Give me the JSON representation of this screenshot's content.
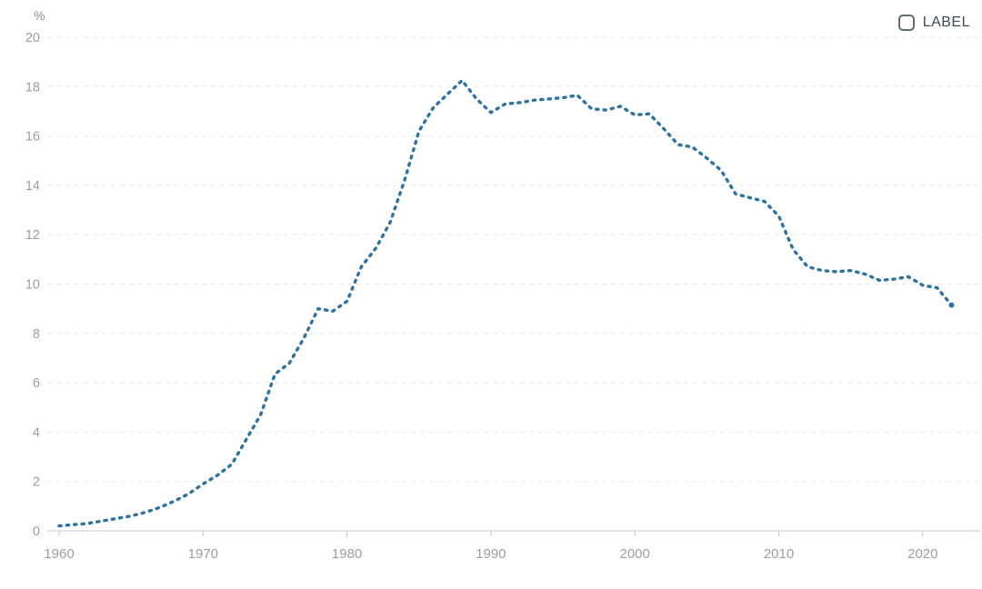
{
  "page": {
    "background_color": "#ffffff"
  },
  "legend": {
    "label": "LABEL",
    "checked": false
  },
  "axis_style": {
    "tick_label_color": "#9e9e9e",
    "unit_label_color": "#8a8f94",
    "grid_color": "#e8e8e8",
    "axis_line_color": "#dcdcdc",
    "tick_mark_color": "#c8c8c8"
  },
  "chart_data": {
    "type": "line",
    "title": "",
    "xlabel": "",
    "ylabel": "%",
    "line_color": "#2d72a0",
    "line_style": "dotted",
    "grid": "horizontal-dashed",
    "legend_position": "top-right",
    "xlim": [
      1959.4,
      2024
    ],
    "ylim": [
      0,
      20
    ],
    "x_ticks": [
      1960,
      1970,
      1980,
      1990,
      2000,
      2010,
      2020
    ],
    "y_ticks": [
      0,
      2,
      4,
      6,
      8,
      10,
      12,
      14,
      16,
      18,
      20
    ],
    "x": [
      1960,
      1961,
      1962,
      1963,
      1964,
      1965,
      1966,
      1967,
      1968,
      1969,
      1970,
      1971,
      1972,
      1973,
      1974,
      1975,
      1976,
      1977,
      1978,
      1979,
      1980,
      1981,
      1982,
      1983,
      1984,
      1985,
      1986,
      1987,
      1988,
      1989,
      1990,
      1991,
      1992,
      1993,
      1994,
      1995,
      1996,
      1997,
      1998,
      1999,
      2000,
      2001,
      2002,
      2003,
      2004,
      2005,
      2006,
      2007,
      2008,
      2009,
      2010,
      2011,
      2012,
      2013,
      2014,
      2015,
      2016,
      2017,
      2018,
      2019,
      2020,
      2021,
      2022
    ],
    "values": [
      0.2,
      0.25,
      0.3,
      0.4,
      0.5,
      0.6,
      0.75,
      0.95,
      1.2,
      1.5,
      1.9,
      2.25,
      2.7,
      3.7,
      4.7,
      6.35,
      6.8,
      7.8,
      9.0,
      8.9,
      9.3,
      10.7,
      11.45,
      12.5,
      14.2,
      16.2,
      17.15,
      17.7,
      18.25,
      17.5,
      16.95,
      17.3,
      17.35,
      17.45,
      17.5,
      17.55,
      17.65,
      17.1,
      17.05,
      17.2,
      16.85,
      16.9,
      16.3,
      15.65,
      15.55,
      15.1,
      14.6,
      13.65,
      13.5,
      13.35,
      12.75,
      11.4,
      10.7,
      10.55,
      10.5,
      10.55,
      10.4,
      10.15,
      10.2,
      10.3,
      9.95,
      9.85,
      9.15
    ]
  }
}
